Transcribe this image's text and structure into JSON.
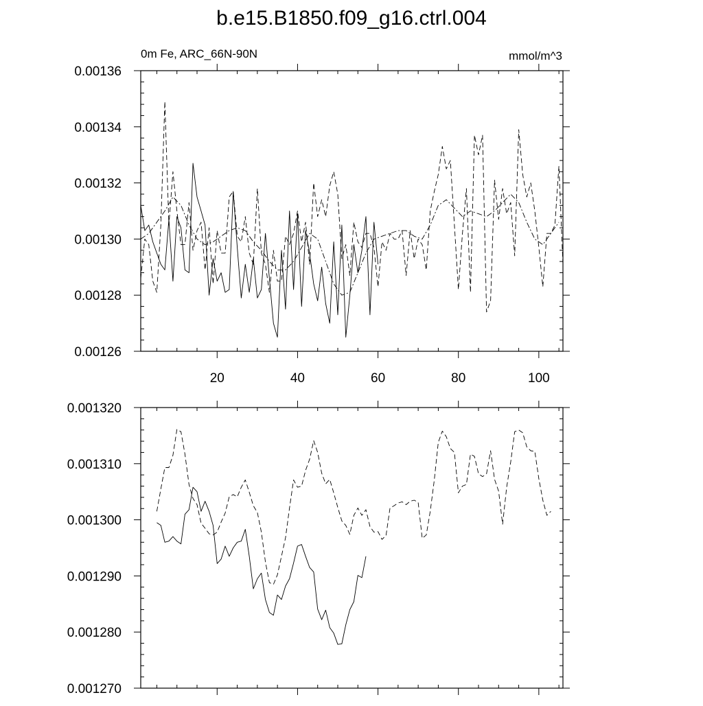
{
  "title": "b.e15.B1850.f09_g16.ctrl.004",
  "chart_data": [
    {
      "type": "line",
      "left_label": "0m Fe, ARC_66N-90N",
      "right_label": "mmol/m^3",
      "xlim": [
        1,
        106
      ],
      "ylim": [
        0.00126,
        0.00136
      ],
      "y_ticks": [
        0.00126,
        0.00128,
        0.0013,
        0.00132,
        0.00134,
        0.00136
      ],
      "y_tick_labels": [
        "0.00126",
        "0.00128",
        "0.00130",
        "0.00132",
        "0.00134",
        "0.00136"
      ],
      "x_ticks": [
        20,
        40,
        60,
        80,
        100
      ],
      "x_tick_labels": [
        "20",
        "40",
        "60",
        "80",
        "100"
      ],
      "grid": false,
      "series": [
        {
          "style": "solid",
          "x": [
            1,
            2,
            3,
            4,
            5,
            6,
            7,
            8,
            9,
            10,
            11,
            12,
            13,
            14,
            15,
            16,
            17,
            18,
            19,
            20,
            21,
            22,
            23,
            24,
            25,
            26,
            27,
            28,
            29,
            30,
            31,
            32,
            33,
            34,
            35,
            36,
            37,
            38,
            39,
            40,
            41,
            42,
            43,
            44,
            45,
            46,
            47,
            48,
            49,
            50,
            51,
            52,
            53,
            54,
            55,
            56,
            57,
            58,
            59,
            60
          ],
          "y": [
            0.001312,
            0.001303,
            0.001305,
            0.001299,
            0.001295,
            0.001291,
            0.001289,
            0.001307,
            0.001285,
            0.001308,
            0.001304,
            0.001289,
            0.001288,
            0.001327,
            0.001315,
            0.00131,
            0.001305,
            0.00128,
            0.001293,
            0.001285,
            0.001288,
            0.001281,
            0.001282,
            0.001317,
            0.001297,
            0.001279,
            0.001291,
            0.001281,
            0.001293,
            0.001279,
            0.001282,
            0.001302,
            0.001286,
            0.00127,
            0.001265,
            0.001296,
            0.001275,
            0.00131,
            0.001282,
            0.001309,
            0.001276,
            0.001303,
            0.001295,
            0.001284,
            0.001278,
            0.00129,
            0.001277,
            0.00127,
            0.001299,
            0.001273,
            0.001305,
            0.001265,
            0.00128,
            0.001298,
            0.001288,
            0.001296,
            0.001308,
            0.001273,
            0.001306,
            0.001291
          ]
        },
        {
          "style": "dashed",
          "x": [
            1,
            2,
            3,
            4,
            5,
            6,
            7,
            8,
            9,
            10,
            11,
            12,
            13,
            14,
            15,
            16,
            17,
            18,
            19,
            20,
            21,
            22,
            23,
            24,
            25,
            26,
            27,
            28,
            29,
            30,
            31,
            32,
            33,
            34,
            35,
            36,
            37,
            38,
            39,
            40,
            41,
            42,
            43,
            44,
            45,
            46,
            47,
            48,
            49,
            50,
            51,
            52,
            53,
            54,
            55,
            56,
            57,
            58,
            59,
            60,
            61,
            62,
            63,
            64,
            65,
            66,
            67,
            68,
            69,
            70,
            71,
            72,
            73,
            74,
            75,
            76,
            77,
            78,
            79,
            80,
            81,
            82,
            83,
            84,
            85,
            86,
            87,
            88,
            89,
            90,
            91,
            92,
            93,
            94,
            95,
            96,
            97,
            98,
            99,
            100,
            101,
            102,
            103,
            104,
            105,
            106
          ],
          "y": [
            0.001286,
            0.0013,
            0.001298,
            0.001285,
            0.001281,
            0.001305,
            0.001349,
            0.001305,
            0.001324,
            0.00131,
            0.001298,
            0.001298,
            0.001313,
            0.001296,
            0.001303,
            0.001306,
            0.001289,
            0.001304,
            0.001284,
            0.001303,
            0.001295,
            0.001295,
            0.001315,
            0.001317,
            0.001301,
            0.001299,
            0.001308,
            0.001295,
            0.001291,
            0.001318,
            0.001295,
            0.001291,
            0.001281,
            0.001296,
            0.001285,
            0.001285,
            0.001301,
            0.001298,
            0.001302,
            0.00131,
            0.001299,
            0.001306,
            0.001291,
            0.00132,
            0.001308,
            0.001314,
            0.001308,
            0.001319,
            0.001324,
            0.001316,
            0.001293,
            0.001298,
            0.001287,
            0.001306,
            0.001299,
            0.001297,
            0.001302,
            0.001302,
            0.001297,
            0.001283,
            0.001299,
            0.001296,
            0.001302,
            0.0013,
            0.0013,
            0.001303,
            0.001287,
            0.001303,
            0.001293,
            0.0013,
            0.001298,
            0.001289,
            0.00131,
            0.001317,
            0.001323,
            0.001333,
            0.001325,
            0.001328,
            0.001305,
            0.001282,
            0.001302,
            0.001318,
            0.001281,
            0.001337,
            0.00133,
            0.001337,
            0.001274,
            0.001278,
            0.001321,
            0.001307,
            0.001318,
            0.001309,
            0.001313,
            0.001294,
            0.001339,
            0.001323,
            0.001315,
            0.00132,
            0.00131,
            0.001297,
            0.001283,
            0.001302,
            0.001302,
            0.001305,
            0.001326,
            0.001291
          ]
        },
        {
          "style": "dashdot",
          "x": [
            1,
            3,
            5,
            7,
            9,
            11,
            13,
            15,
            17,
            19,
            21,
            23,
            25,
            27,
            29,
            31,
            33,
            35,
            37,
            39,
            41,
            43,
            45,
            47,
            49,
            51,
            53,
            55,
            57,
            59,
            61,
            63,
            65,
            67,
            69,
            71,
            73,
            75,
            77,
            79,
            81,
            83,
            85,
            87,
            89,
            91,
            93,
            95,
            97,
            99,
            101,
            103,
            105
          ],
          "y": [
            0.0013,
            0.001302,
            0.001306,
            0.00131,
            0.001315,
            0.001312,
            0.001305,
            0.0013,
            0.001298,
            0.001299,
            0.001301,
            0.001303,
            0.001304,
            0.001303,
            0.001299,
            0.001296,
            0.001292,
            0.001289,
            0.001289,
            0.001292,
            0.001297,
            0.001302,
            0.0013,
            0.001292,
            0.001284,
            0.00128,
            0.001281,
            0.001288,
            0.001295,
            0.0013,
            0.001301,
            0.001302,
            0.001303,
            0.001303,
            0.001301,
            0.0013,
            0.001305,
            0.001312,
            0.001314,
            0.001311,
            0.001308,
            0.00131,
            0.001309,
            0.001308,
            0.00131,
            0.001313,
            0.001316,
            0.001313,
            0.001306,
            0.0013,
            0.001298,
            0.001302,
            0.001306
          ]
        }
      ]
    },
    {
      "type": "line",
      "xlim": [
        1,
        106
      ],
      "ylim": [
        0.00127,
        0.00132
      ],
      "y_ticks": [
        0.00127,
        0.00128,
        0.00129,
        0.0013,
        0.00131,
        0.00132
      ],
      "y_tick_labels": [
        "0.001270",
        "0.001280",
        "0.001290",
        "0.001300",
        "0.001310",
        "0.001320"
      ],
      "x_ticks": [
        20,
        40,
        60,
        80,
        100
      ],
      "grid": false,
      "series": [
        {
          "style": "solid",
          "x": [
            5,
            6,
            7,
            8,
            9,
            10,
            11,
            12,
            13,
            14,
            15,
            16,
            17,
            18,
            19,
            20,
            21,
            22,
            23,
            24,
            25,
            26,
            27,
            28,
            29,
            30,
            31,
            32,
            33,
            34,
            35,
            36,
            37,
            38,
            39,
            40,
            41,
            42,
            43,
            44,
            45,
            46,
            47,
            48,
            49,
            50,
            51,
            52,
            53,
            54,
            55,
            56,
            57
          ],
          "y": [
            0.0012995,
            0.001299,
            0.001296,
            0.0012962,
            0.001297,
            0.0012962,
            0.0012957,
            0.001301,
            0.0013018,
            0.0013058,
            0.001305,
            0.0013015,
            0.0013033,
            0.0013015,
            0.001299,
            0.0012922,
            0.001293,
            0.0012953,
            0.0012935,
            0.001295,
            0.001296,
            0.0012962,
            0.0012983,
            0.0012935,
            0.0012877,
            0.0012895,
            0.0012905,
            0.0012858,
            0.0012835,
            0.001283,
            0.0012866,
            0.0012858,
            0.0012882,
            0.0012895,
            0.0012923,
            0.0012953,
            0.0012956,
            0.0012935,
            0.0012915,
            0.0012907,
            0.0012841,
            0.0012822,
            0.0012839,
            0.0012808,
            0.0012798,
            0.0012778,
            0.0012779,
            0.0012813,
            0.001284,
            0.0012854,
            0.0012901,
            0.0012897,
            0.0012935
          ]
        },
        {
          "style": "dashed",
          "x": [
            5,
            6,
            7,
            8,
            9,
            10,
            11,
            12,
            13,
            14,
            15,
            16,
            17,
            18,
            19,
            20,
            21,
            22,
            23,
            24,
            25,
            26,
            27,
            28,
            29,
            30,
            31,
            32,
            33,
            34,
            35,
            36,
            37,
            38,
            39,
            40,
            41,
            42,
            43,
            44,
            45,
            46,
            47,
            48,
            49,
            50,
            51,
            52,
            53,
            54,
            55,
            56,
            57,
            58,
            59,
            60,
            61,
            62,
            63,
            64,
            65,
            66,
            67,
            68,
            69,
            70,
            71,
            72,
            73,
            74,
            75,
            76,
            77,
            78,
            79,
            80,
            81,
            82,
            83,
            84,
            85,
            86,
            87,
            88,
            89,
            90,
            91,
            92,
            93,
            94,
            95,
            96,
            97,
            98,
            99,
            100,
            101,
            102,
            103
          ],
          "y": [
            0.0013015,
            0.0013055,
            0.0013093,
            0.0013093,
            0.0013115,
            0.0013161,
            0.0013157,
            0.0013117,
            0.0013063,
            0.0013038,
            0.0013027,
            0.0012994,
            0.0012985,
            0.0012975,
            0.0012973,
            0.0012978,
            0.0012996,
            0.0013012,
            0.0013041,
            0.0013045,
            0.0013041,
            0.0013058,
            0.0013071,
            0.0013049,
            0.0013025,
            0.0013013,
            0.0012978,
            0.0012925,
            0.0012888,
            0.0012885,
            0.0012902,
            0.0012935,
            0.0012968,
            0.0013021,
            0.0013071,
            0.0013058,
            0.001306,
            0.0013088,
            0.0013108,
            0.0013141,
            0.001312,
            0.0013083,
            0.0013064,
            0.0013072,
            0.0013048,
            0.0013022,
            0.0012998,
            0.001299,
            0.0012974,
            0.0013008,
            0.0013021,
            0.0013008,
            0.0013018,
            0.0012988,
            0.0012978,
            0.0012979,
            0.0012965,
            0.0012972,
            0.0013021,
            0.0013025,
            0.001303,
            0.0013032,
            0.0013027,
            0.0013033,
            0.0013035,
            0.0013031,
            0.0012967,
            0.0012973,
            0.0013015,
            0.0013071,
            0.0013138,
            0.0013158,
            0.0013148,
            0.0013127,
            0.001312,
            0.0013048,
            0.001306,
            0.0013063,
            0.0013117,
            0.0013113,
            0.0013082,
            0.0013077,
            0.0013082,
            0.0013123,
            0.0013072,
            0.0013051,
            0.0012992,
            0.0013058,
            0.0013103,
            0.0013157,
            0.001316,
            0.0013155,
            0.001313,
            0.0013123,
            0.0013122,
            0.0013073,
            0.0013035,
            0.0013008,
            0.0013015
          ]
        }
      ]
    }
  ]
}
